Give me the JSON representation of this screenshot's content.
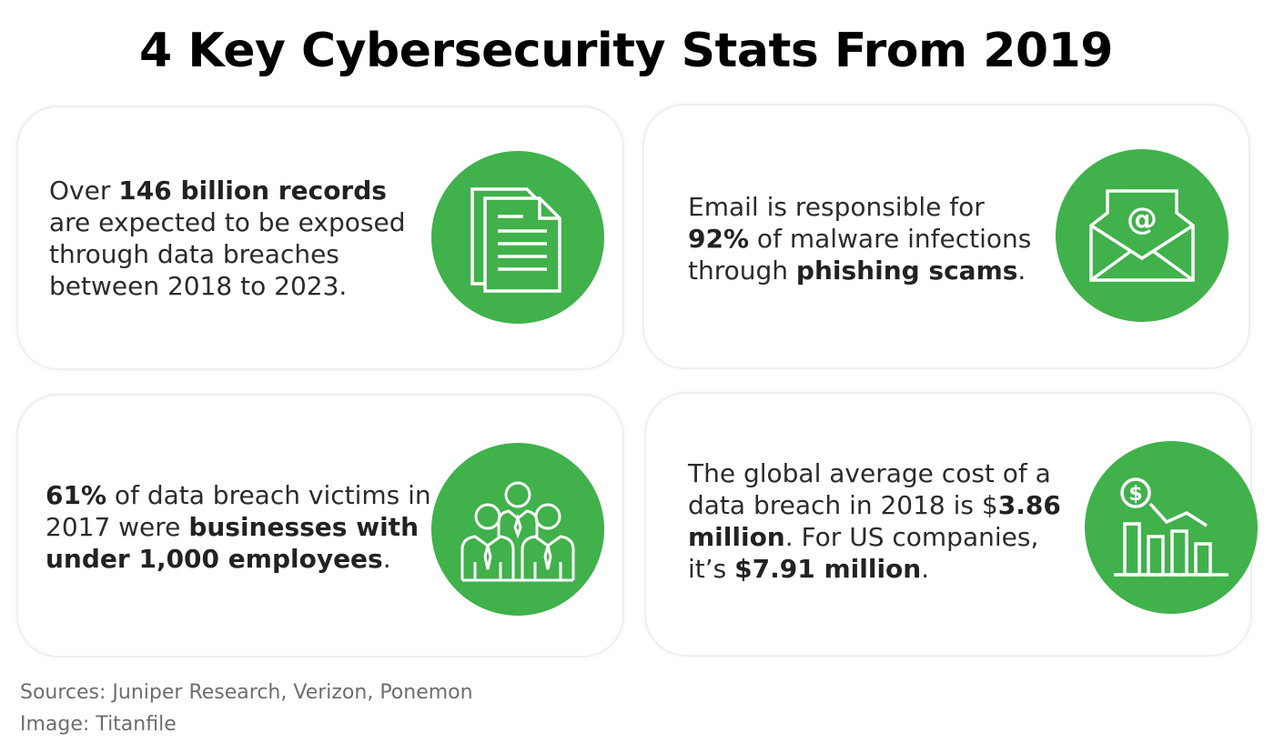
{
  "title": "4 Key Cybersecurity Stats From 2019",
  "colors": {
    "accent": "#40b14b",
    "icon_stroke": "#ffffff",
    "text": "#2b2b2b",
    "source_text": "#6d6d6d"
  },
  "cards": [
    {
      "icon": "document-icon",
      "parts": [
        {
          "text": "Over ",
          "bold": false
        },
        {
          "text": "146 billion records",
          "bold": true
        },
        {
          "text": " are expected to be exposed through data breaches between 2018 to 2023.",
          "bold": false
        }
      ]
    },
    {
      "icon": "email-icon",
      "parts": [
        {
          "text": "Email is responsible for ",
          "bold": false
        },
        {
          "text": "92%",
          "bold": true
        },
        {
          "text": " of malware infections through ",
          "bold": false
        },
        {
          "text": "phishing scams",
          "bold": true
        },
        {
          "text": ".",
          "bold": false
        }
      ]
    },
    {
      "icon": "team-icon",
      "parts": [
        {
          "text": "61%",
          "bold": true
        },
        {
          "text": " of data breach victims in 2017 were ",
          "bold": false
        },
        {
          "text": "businesses with under 1,000 employees",
          "bold": true
        },
        {
          "text": ".",
          "bold": false
        }
      ]
    },
    {
      "icon": "cost-chart-icon",
      "parts": [
        {
          "text": "The global average cost of a data breach in 2018 is $",
          "bold": false
        },
        {
          "text": "3.86 million",
          "bold": true
        },
        {
          "text": ". For US companies, it’s ",
          "bold": false
        },
        {
          "text": "$7.91 million",
          "bold": true
        },
        {
          "text": ".",
          "bold": false
        }
      ]
    }
  ],
  "sources": {
    "line1": "Sources: Juniper Research, Verizon, Ponemon",
    "line2": "Image: Titanfile"
  }
}
